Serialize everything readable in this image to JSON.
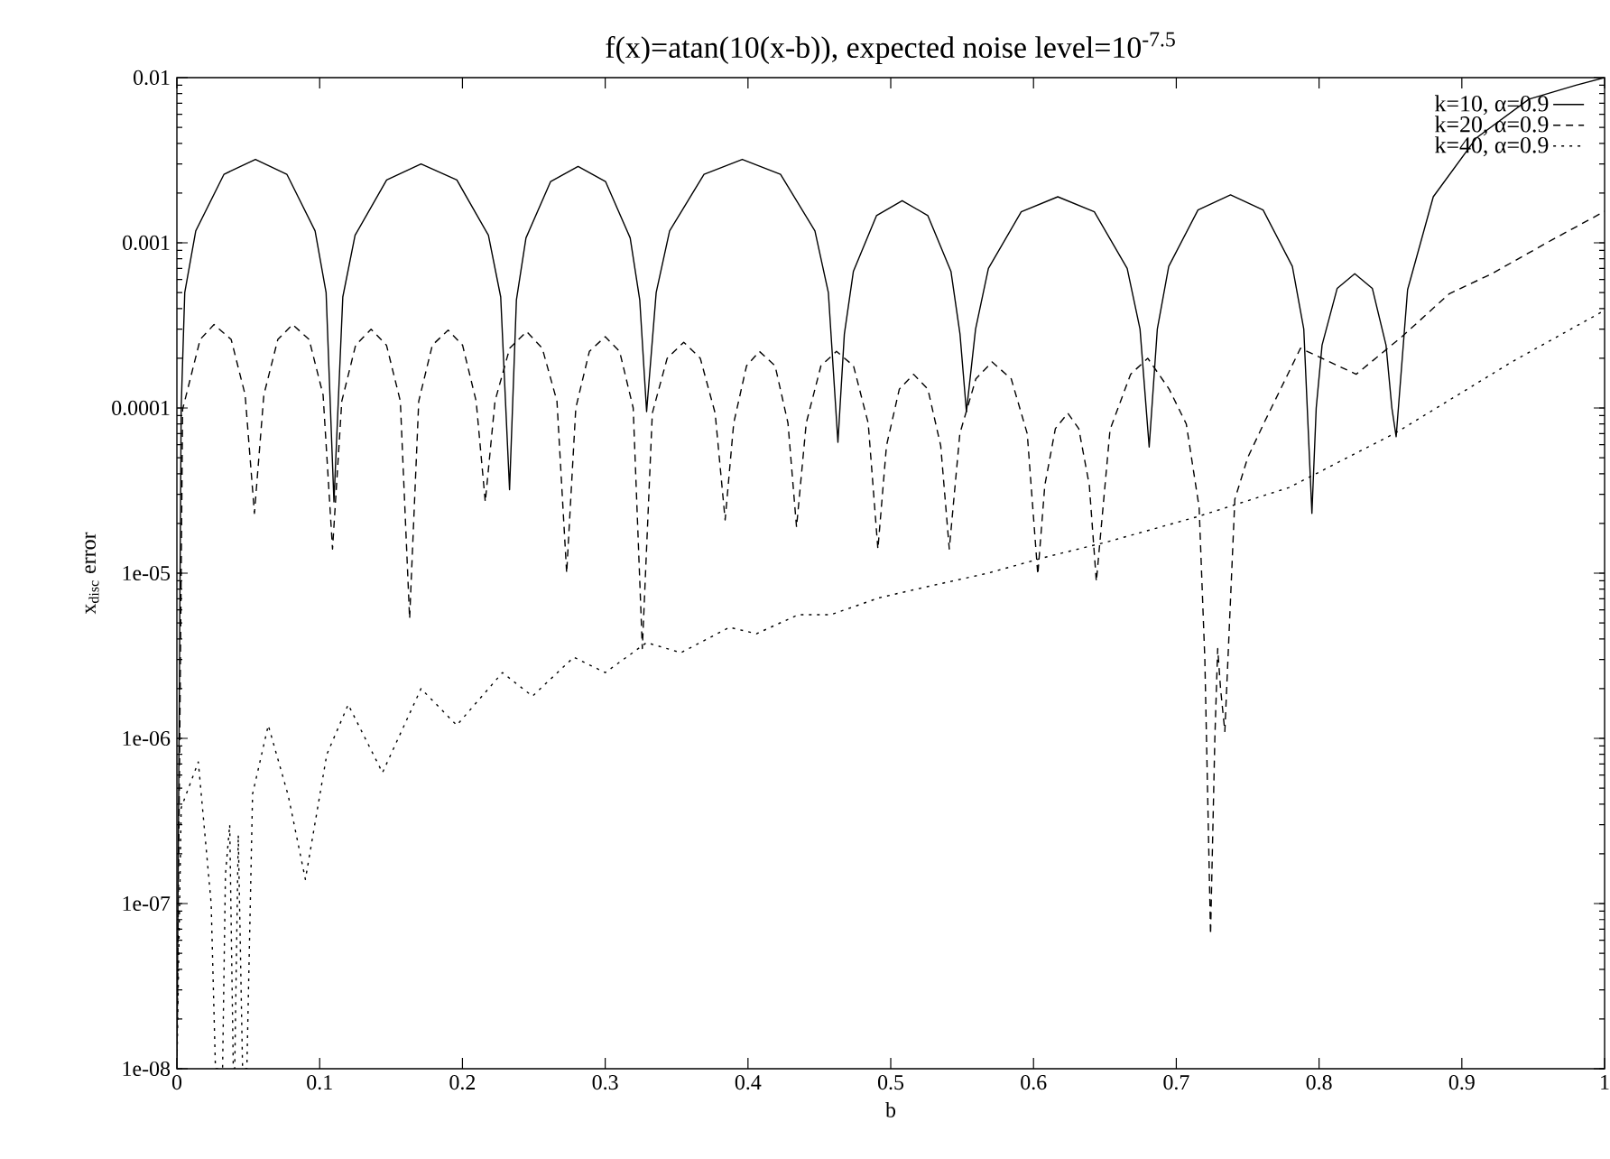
{
  "chart_data": {
    "type": "line",
    "title": "f(x)=atan(10(x-b)), expected noise level=10$^{-7.5}$",
    "xlabel": "b",
    "ylabel": "x$_{disc}$ error",
    "xlim": [
      0,
      1
    ],
    "ylim": [
      1e-08,
      0.01
    ],
    "xticks": [
      0,
      0.1,
      0.2,
      0.3,
      0.4,
      0.5,
      0.6,
      0.7,
      0.8,
      0.9,
      1
    ],
    "yticks": [
      {
        "value": 1e-08,
        "label": "1e-08"
      },
      {
        "value": 1e-07,
        "label": "1e-07"
      },
      {
        "value": 1e-06,
        "label": "1e-06"
      },
      {
        "value": 1e-05,
        "label": "1e-05"
      },
      0.0001,
      0.001,
      0.01
    ],
    "log": "y",
    "legend": "top right",
    "marker": "none",
    "series": [
      {
        "name": "k=10, α=0.9",
        "color": "#000000",
        "line_style": "solid",
        "x": [
          0,
          0.003,
          0.0055,
          0.0132,
          0.033,
          0.055,
          0.077,
          0.0968,
          0.1045,
          0.11,
          0.1162,
          0.1248,
          0.1469,
          0.171,
          0.1961,
          0.2182,
          0.2268,
          0.233,
          0.2378,
          0.2445,
          0.2618,
          0.281,
          0.3002,
          0.3175,
          0.3242,
          0.329,
          0.3357,
          0.3451,
          0.3692,
          0.396,
          0.4228,
          0.4469,
          0.4563,
          0.463,
          0.4675,
          0.4738,
          0.49,
          0.508,
          0.526,
          0.5422,
          0.5485,
          0.553,
          0.5594,
          0.5684,
          0.5914,
          0.617,
          0.6426,
          0.6656,
          0.6746,
          0.681,
          0.6867,
          0.6947,
          0.7152,
          0.738,
          0.7608,
          0.7813,
          0.7893,
          0.795,
          0.798,
          0.8021,
          0.8127,
          0.825,
          0.8373,
          0.8469,
          0.851,
          0.854,
          0.862,
          0.88,
          0.91,
          0.947,
          0.98,
          1.0
        ],
        "values": [
          1e-08,
          0.0001,
          0.0005,
          0.00118,
          0.0026,
          0.0032,
          0.0026,
          0.00118,
          0.0005,
          2.7e-05,
          0.00047,
          0.00111,
          0.0024,
          0.003,
          0.0024,
          0.00111,
          0.00047,
          3.2e-05,
          0.00045,
          0.00107,
          0.00235,
          0.0029,
          0.00235,
          0.00107,
          0.00045,
          9.5e-05,
          0.0005,
          0.00118,
          0.0026,
          0.0032,
          0.0026,
          0.00118,
          0.0005,
          6.2e-05,
          0.00028,
          0.00067,
          0.00146,
          0.0018,
          0.00146,
          0.00067,
          0.00028,
          9.5e-05,
          0.0003,
          0.0007,
          0.00154,
          0.0019,
          0.00154,
          0.0007,
          0.0003,
          5.8e-05,
          0.0003,
          0.00072,
          0.00158,
          0.00195,
          0.00158,
          0.00072,
          0.0003,
          2.3e-05,
          0.0001,
          0.00024,
          0.00053,
          0.00065,
          0.00053,
          0.00024,
          0.0001,
          6.7e-05,
          0.00052,
          0.0019,
          0.0043,
          0.0074,
          0.009,
          0.01
        ]
      },
      {
        "name": "k=20, α=0.9",
        "color": "#000000",
        "line_style": "dashed",
        "x": [
          0,
          0.004,
          0.0163,
          0.026,
          0.038,
          0.0478,
          0.0543,
          0.0609,
          0.0707,
          0.081,
          0.0926,
          0.1024,
          0.109,
          0.1155,
          0.1252,
          0.136,
          0.1468,
          0.1565,
          0.163,
          0.1694,
          0.1789,
          0.19,
          0.2001,
          0.2096,
          0.216,
          0.2228,
          0.2331,
          0.245,
          0.2559,
          0.2662,
          0.273,
          0.2794,
          0.2889,
          0.3,
          0.3101,
          0.3196,
          0.326,
          0.333,
          0.3434,
          0.355,
          0.3666,
          0.377,
          0.384,
          0.39,
          0.399,
          0.408,
          0.419,
          0.428,
          0.434,
          0.4408,
          0.4511,
          0.462,
          0.4739,
          0.4842,
          0.491,
          0.497,
          0.506,
          0.516,
          0.526,
          0.535,
          0.541,
          0.5484,
          0.5596,
          0.571,
          0.5844,
          0.5956,
          0.603,
          0.6079,
          0.6153,
          0.624,
          0.6317,
          0.6391,
          0.644,
          0.6536,
          0.668,
          0.68,
          0.695,
          0.707,
          0.716,
          0.72,
          0.724,
          0.727,
          0.729,
          0.731,
          0.734,
          0.741,
          0.75,
          0.762,
          0.787,
          0.826,
          0.858,
          0.891,
          0.921,
          0.963,
          1.0
        ],
        "values": [
          1e-08,
          9.8e-05,
          0.00026,
          0.00032,
          0.00026,
          0.00012,
          2.3e-05,
          0.00012,
          0.00026,
          0.00032,
          0.00026,
          0.00012,
          1.4e-05,
          0.00011,
          0.00024,
          0.0003,
          0.00024,
          0.00011,
          5.3e-06,
          0.00011,
          0.00024,
          0.000296,
          0.00024,
          0.00011,
          2.7e-05,
          0.00011,
          0.00023,
          0.00029,
          0.00023,
          0.00011,
          1e-05,
          0.0001,
          0.00022,
          0.00027,
          0.00022,
          0.0001,
          3.5e-06,
          9.3e-05,
          0.0002,
          0.00025,
          0.0002,
          9.3e-05,
          2.1e-05,
          8.1e-05,
          0.00018,
          0.00022,
          0.00018,
          8.1e-05,
          1.9e-05,
          8.1e-05,
          0.00018,
          0.00022,
          0.00018,
          8.1e-05,
          1.4e-05,
          5.9e-05,
          0.00013,
          0.00016,
          0.00013,
          5.9e-05,
          1.4e-05,
          7e-05,
          0.00015,
          0.00019,
          0.00015,
          7e-05,
          9.8e-06,
          3.4e-05,
          7.5e-05,
          9.3e-05,
          7.5e-05,
          3.4e-05,
          8.9e-06,
          7.4e-05,
          0.00016,
          0.0002,
          0.00013,
          8e-05,
          2.5e-05,
          3e-06,
          6.5e-08,
          1e-06,
          3.5e-06,
          2e-06,
          1.1e-06,
          2.8e-05,
          5e-05,
          8.3e-05,
          0.00023,
          0.00016,
          0.00027,
          0.00049,
          0.00065,
          0.00104,
          0.00155
        ]
      },
      {
        "name": "k=40, α=0.9",
        "color": "#000000",
        "line_style": "dotted",
        "x": [
          0,
          0.003,
          0.015,
          0.024,
          0.027,
          0.032,
          0.034,
          0.037,
          0.0395,
          0.0405,
          0.043,
          0.046,
          0.049,
          0.053,
          0.064,
          0.078,
          0.09,
          0.105,
          0.12,
          0.144,
          0.171,
          0.196,
          0.228,
          0.249,
          0.278,
          0.3,
          0.329,
          0.353,
          0.387,
          0.406,
          0.435,
          0.458,
          0.492,
          0.526,
          0.568,
          0.61,
          0.652,
          0.715,
          0.779,
          0.854,
          0.935,
          1.0
        ],
        "values": [
          1e-08,
          3.8e-07,
          7.2e-07,
          1e-07,
          1e-08,
          1e-08,
          1.5e-07,
          3e-07,
          1e-08,
          1e-08,
          2.6e-07,
          1e-08,
          1e-08,
          4.6e-07,
          1.2e-06,
          4.5e-07,
          1.4e-07,
          8e-07,
          1.6e-06,
          6.2e-07,
          2e-06,
          1.2e-06,
          2.5e-06,
          1.8e-06,
          3.1e-06,
          2.5e-06,
          3.8e-06,
          3.3e-06,
          4.7e-06,
          4.3e-06,
          5.6e-06,
          5.6e-06,
          7.1e-06,
          8.3e-06,
          1e-05,
          1.26e-05,
          1.55e-05,
          2.2e-05,
          3.3e-05,
          7.1e-05,
          0.00019,
          0.00039
        ]
      }
    ]
  }
}
